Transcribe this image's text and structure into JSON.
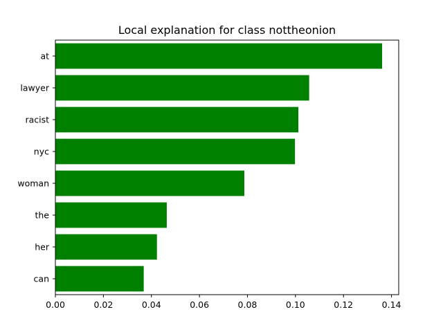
{
  "chart_data": {
    "type": "bar",
    "orientation": "horizontal",
    "title": "Local explanation for class nottheonion",
    "xlabel": "",
    "ylabel": "",
    "categories": [
      "at",
      "lawyer",
      "racist",
      "nyc",
      "woman",
      "the",
      "her",
      "can"
    ],
    "values": [
      0.1361,
      0.1057,
      0.1012,
      0.0998,
      0.0787,
      0.0464,
      0.0423,
      0.0368
    ],
    "xlim": [
      0.0,
      0.143
    ],
    "xticks": [
      "0.00",
      "0.02",
      "0.04",
      "0.06",
      "0.08",
      "0.10",
      "0.12",
      "0.14"
    ],
    "bar_color": "#008000",
    "grid": false
  }
}
